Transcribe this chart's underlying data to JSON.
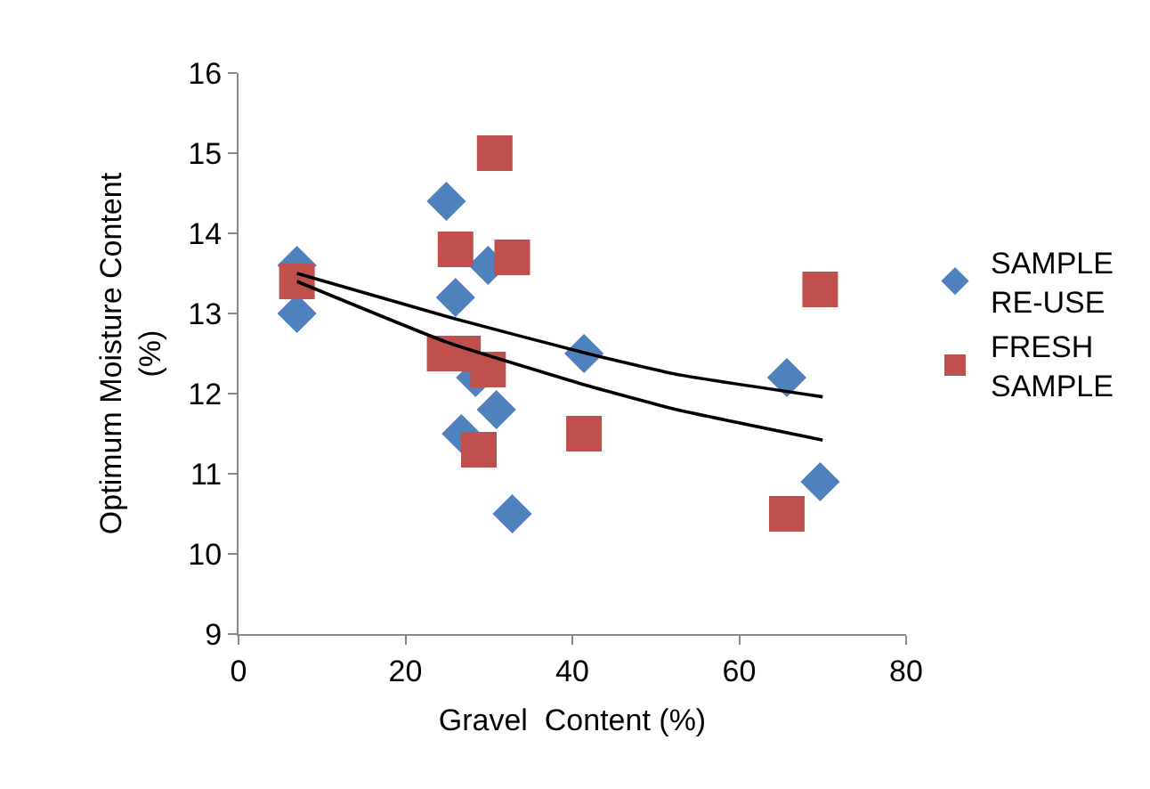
{
  "chart_data": {
    "type": "scatter",
    "xlabel": "Gravel  Content (%)",
    "ylabel": "Optimum Moisture Content (%)",
    "xlim": [
      0,
      80
    ],
    "xticks": [
      0,
      20,
      40,
      60,
      80
    ],
    "ylim": [
      9,
      16
    ],
    "yticks": [
      9,
      10,
      11,
      12,
      13,
      14,
      15,
      16
    ],
    "grid": false,
    "legend": "right",
    "series": [
      {
        "name": "SAMPLE RE-USE",
        "color": "#4f81bd",
        "marker": "diamond",
        "x": [
          7.0,
          7.0,
          24.9,
          26.0,
          29.9,
          28.4,
          30.9,
          26.7,
          32.8,
          41.4,
          65.7,
          69.7
        ],
        "values": [
          13.6,
          13.0,
          14.4,
          13.2,
          13.6,
          12.2,
          11.8,
          11.5,
          10.5,
          12.5,
          12.2,
          10.9
        ]
      },
      {
        "name": "FRESH SAMPLE",
        "color": "#c0504d",
        "marker": "square",
        "x": [
          7.0,
          30.7,
          26.0,
          32.8,
          24.7,
          26.9,
          29.9,
          28.8,
          41.4,
          69.7,
          65.7
        ],
        "values": [
          13.4,
          15.0,
          13.8,
          13.7,
          12.5,
          12.5,
          12.3,
          11.3,
          11.5,
          13.3,
          10.5
        ]
      },
      {
        "type": "line",
        "color": "#000000",
        "marker": "none",
        "x": [
          7,
          25,
          41.8,
          52.5,
          70
        ],
        "values": [
          13.5,
          12.96,
          12.5,
          12.24,
          11.96
        ]
      },
      {
        "type": "line",
        "color": "#000000",
        "marker": "none",
        "x": [
          7,
          25,
          41.8,
          52.5,
          70
        ],
        "values": [
          13.4,
          12.64,
          12.1,
          11.8,
          11.42
        ]
      }
    ]
  }
}
